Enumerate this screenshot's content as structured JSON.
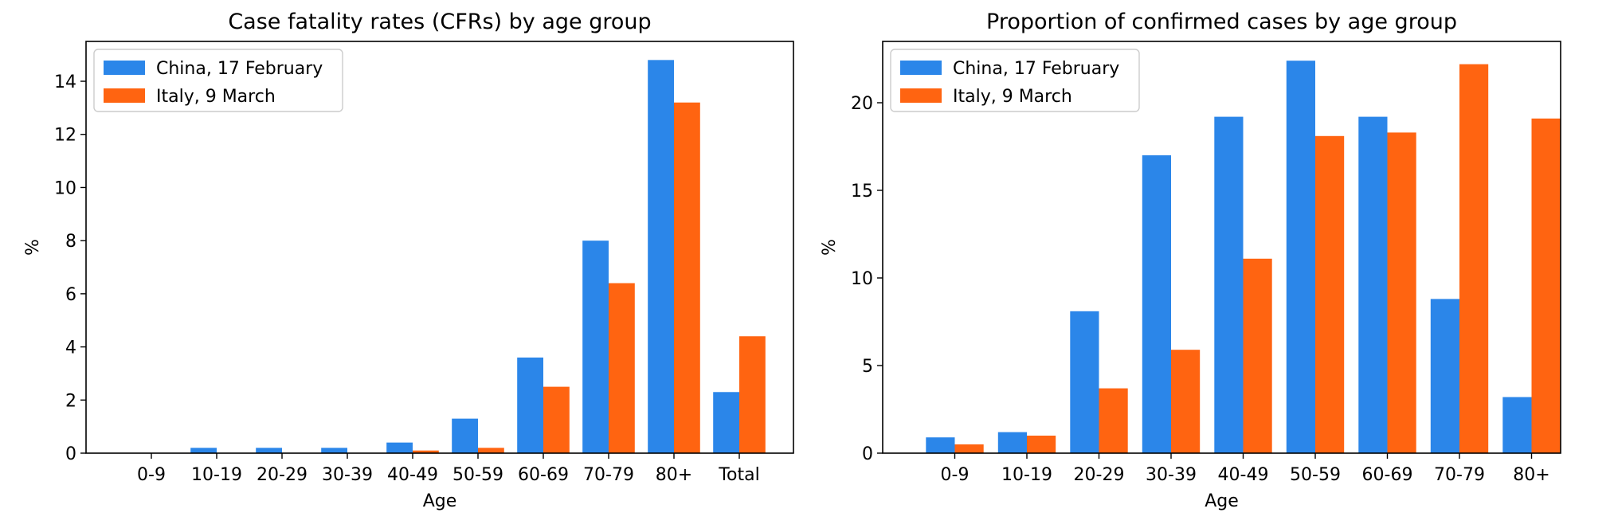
{
  "chart_data": [
    {
      "type": "bar",
      "title": "Case fatality rates (CFRs) by age group",
      "xlabel": "Age",
      "ylabel": "%",
      "categories": [
        "0-9",
        "10-19",
        "20-29",
        "30-39",
        "40-49",
        "50-59",
        "60-69",
        "70-79",
        "80+",
        "Total"
      ],
      "series": [
        {
          "name": "China, 17 February",
          "color": "#2b86e9",
          "values": [
            0,
            0.2,
            0.2,
            0.2,
            0.4,
            1.3,
            3.6,
            8.0,
            14.8,
            2.3
          ]
        },
        {
          "name": "Italy, 9 March",
          "color": "#ff6411",
          "values": [
            0,
            0,
            0,
            0,
            0.1,
            0.2,
            2.5,
            6.4,
            13.2,
            4.4
          ]
        }
      ],
      "ylim": [
        0,
        15.5
      ],
      "yticks": [
        0,
        2,
        4,
        6,
        8,
        10,
        12,
        14
      ],
      "legend": "top-left",
      "grid": false
    },
    {
      "type": "bar",
      "title": "Proportion of confirmed cases by age group",
      "xlabel": "Age",
      "ylabel": "%",
      "categories": [
        "0-9",
        "10-19",
        "20-29",
        "30-39",
        "40-49",
        "50-59",
        "60-69",
        "70-79",
        "80+"
      ],
      "series": [
        {
          "name": "China, 17 February",
          "color": "#2b86e9",
          "values": [
            0.9,
            1.2,
            8.1,
            17.0,
            19.2,
            22.4,
            19.2,
            8.8,
            3.2
          ]
        },
        {
          "name": "Italy, 9 March",
          "color": "#ff6411",
          "values": [
            0.5,
            1.0,
            3.7,
            5.9,
            11.1,
            18.1,
            18.3,
            22.2,
            19.1
          ]
        }
      ],
      "ylim": [
        0,
        23.5
      ],
      "yticks": [
        0,
        5,
        10,
        15,
        20
      ],
      "legend": "top-left",
      "grid": false
    }
  ]
}
